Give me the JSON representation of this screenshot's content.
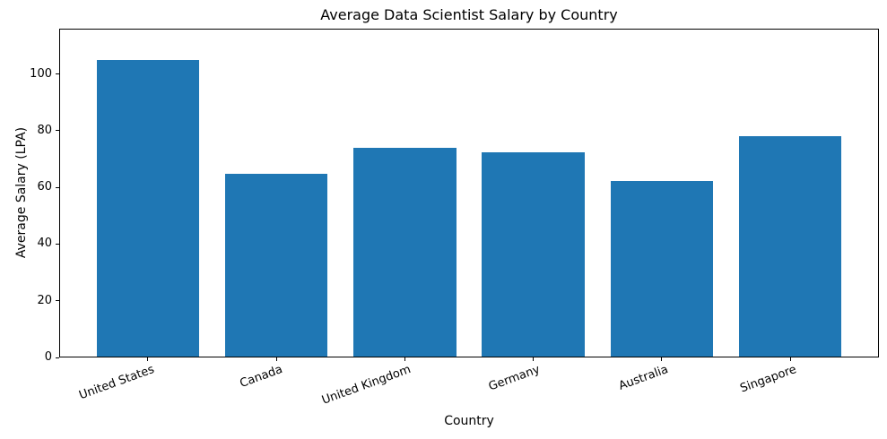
{
  "figure": {
    "background_color": "#ffffff",
    "spine_color": "#000000",
    "text_color": "#000000"
  },
  "chart_data": {
    "type": "bar",
    "title": "Average Data Scientist Salary by Country",
    "xlabel": "Country",
    "ylabel": "Average Salary (LPA)",
    "categories": [
      "United States",
      "Canada",
      "United Kingdom",
      "Germany",
      "Australia",
      "Singapore"
    ],
    "values": [
      104.5,
      64.5,
      73.8,
      72.0,
      61.9,
      77.7
    ],
    "yticks": [
      0,
      20,
      40,
      60,
      80,
      100
    ],
    "ylim": [
      0,
      116
    ],
    "xlim": [
      -0.69,
      5.69
    ],
    "bar_width_fraction": 0.8,
    "bar_color": "#1f77b4",
    "xtick_rotation_deg": 20,
    "grid": false,
    "legend_position": "none"
  }
}
